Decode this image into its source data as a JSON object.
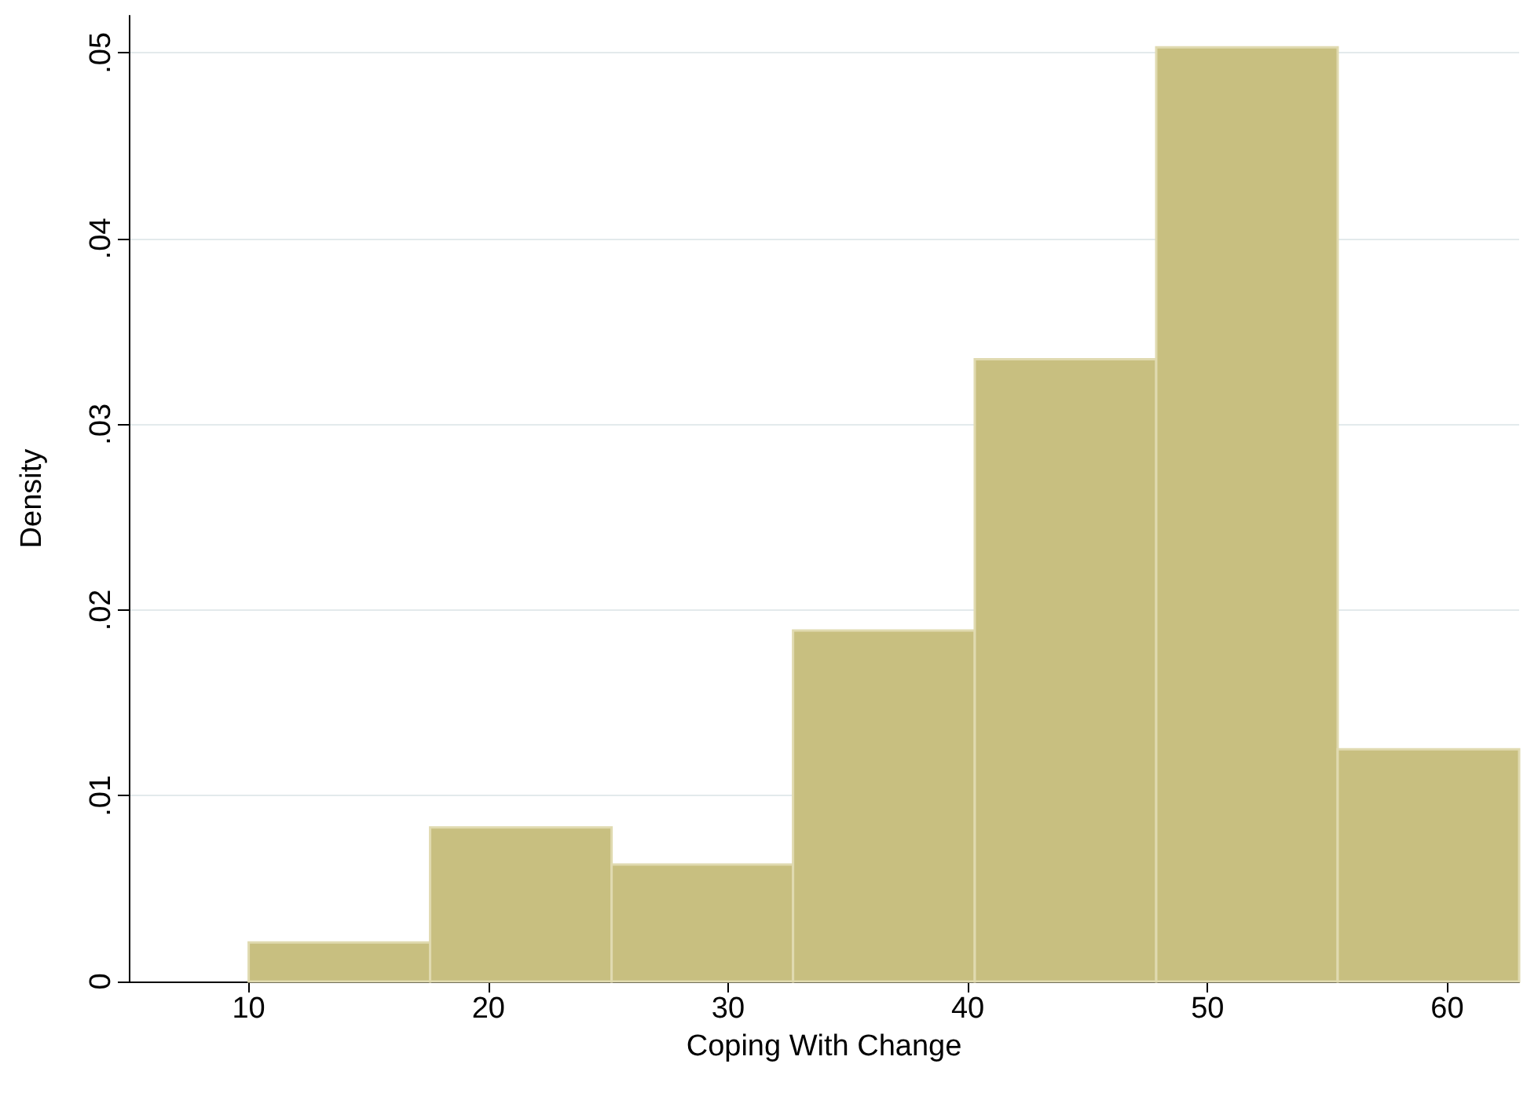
{
  "chart_data": {
    "type": "histogram",
    "xlabel": "Coping With Change",
    "ylabel": "Density",
    "bins": [
      10,
      17.57,
      25.14,
      32.71,
      40.29,
      47.86,
      55.43,
      63
    ],
    "values": [
      0.0021,
      0.0083,
      0.0063,
      0.0189,
      0.0335,
      0.0503,
      0.0125
    ],
    "color": "#c8bf80",
    "xlim": [
      5,
      63
    ],
    "xticks": [
      10,
      20,
      30,
      40,
      50,
      60
    ],
    "ylim": [
      0,
      0.052
    ],
    "yticks": [
      0,
      {
        "value": 0.01,
        "label": ".01"
      },
      {
        "value": 0.02,
        "label": ".02"
      },
      {
        "value": 0.03,
        "label": ".03"
      },
      {
        "value": 0.04,
        "label": ".04"
      },
      {
        "value": 0.05,
        "label": ".05"
      }
    ],
    "grid": "y"
  }
}
